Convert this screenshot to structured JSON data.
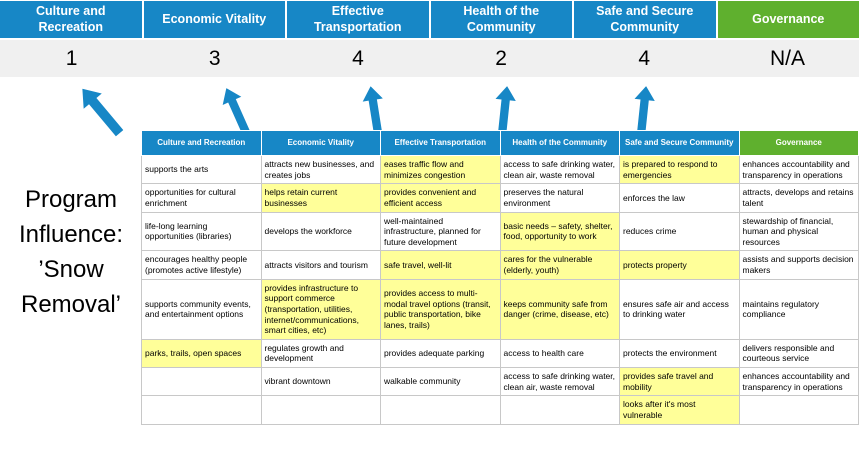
{
  "colors": {
    "blue": "#1787C6",
    "green": "#5FB02E",
    "band": "#F0F0F0",
    "highlight": "#FFFF99",
    "border": "#C8C8C8"
  },
  "summary": {
    "columns": [
      {
        "label": "Culture and Recreation",
        "score": "1",
        "color": "blue"
      },
      {
        "label": "Economic Vitality",
        "score": "3",
        "color": "blue"
      },
      {
        "label": "Effective Transportation",
        "score": "4",
        "color": "blue"
      },
      {
        "label": "Health of the Community",
        "score": "2",
        "color": "blue"
      },
      {
        "label": "Safe and Secure Community",
        "score": "4",
        "color": "blue"
      },
      {
        "label": "Governance",
        "score": "N/A",
        "color": "green"
      }
    ]
  },
  "program_label": {
    "lines": [
      "Program",
      "Influence:",
      "’Snow",
      "Removal’"
    ]
  },
  "matrix": {
    "columns": [
      {
        "header": "Culture and Recreation",
        "color": "blue",
        "cells": [
          {
            "text": "supports the arts",
            "highlight": false
          },
          {
            "text": "opportunities for cultural enrichment",
            "highlight": false
          },
          {
            "text": "life-long learning opportunities (libraries)",
            "highlight": false
          },
          {
            "text": "encourages healthy people (promotes active lifestyle)",
            "highlight": false
          },
          {
            "text": "supports community events, and entertainment options",
            "highlight": false
          },
          {
            "text": "parks, trails, open spaces",
            "highlight": true
          },
          {
            "text": "",
            "highlight": false
          },
          {
            "text": "",
            "highlight": false
          }
        ]
      },
      {
        "header": "Economic Vitality",
        "color": "blue",
        "cells": [
          {
            "text": "attracts new businesses, and creates jobs",
            "highlight": false
          },
          {
            "text": "helps retain current businesses",
            "highlight": true
          },
          {
            "text": "develops the workforce",
            "highlight": false
          },
          {
            "text": "attracts visitors and tourism",
            "highlight": false
          },
          {
            "text": "provides infrastructure to support commerce (transportation, utilities, internet/communications, smart cities, etc)",
            "highlight": true
          },
          {
            "text": "regulates growth and development",
            "highlight": false
          },
          {
            "text": "vibrant downtown",
            "highlight": false
          },
          {
            "text": "",
            "highlight": false
          }
        ]
      },
      {
        "header": "Effective Transportation",
        "color": "blue",
        "cells": [
          {
            "text": "eases traffic flow and minimizes congestion",
            "highlight": true
          },
          {
            "text": "provides convenient and efficient access",
            "highlight": true
          },
          {
            "text": "well-maintained infrastructure, planned for future development",
            "highlight": false
          },
          {
            "text": "safe travel, well-lit",
            "highlight": true
          },
          {
            "text": "provides access to multi-modal travel options (transit, public transportation, bike lanes, trails)",
            "highlight": true
          },
          {
            "text": "provides adequate parking",
            "highlight": false
          },
          {
            "text": "walkable community",
            "highlight": false
          },
          {
            "text": "",
            "highlight": false
          }
        ]
      },
      {
        "header": "Health of the Community",
        "color": "blue",
        "cells": [
          {
            "text": "access to safe drinking water, clean air, waste removal",
            "highlight": false
          },
          {
            "text": "preserves the natural environment",
            "highlight": false
          },
          {
            "text": "basic needs – safety, shelter, food, opportunity to work",
            "highlight": true
          },
          {
            "text": "cares for the vulnerable (elderly, youth)",
            "highlight": true
          },
          {
            "text": "keeps community safe from danger (crime, disease, etc)",
            "highlight": true
          },
          {
            "text": "access to health care",
            "highlight": false
          },
          {
            "text": "access to safe drinking water, clean air, waste removal",
            "highlight": false
          },
          {
            "text": "",
            "highlight": false
          }
        ]
      },
      {
        "header": "Safe and Secure Community",
        "color": "blue",
        "cells": [
          {
            "text": "is prepared to respond to emergencies",
            "highlight": true
          },
          {
            "text": "enforces the law",
            "highlight": false
          },
          {
            "text": "reduces crime",
            "highlight": false
          },
          {
            "text": "protects property",
            "highlight": true
          },
          {
            "text": "ensures safe air and access to drinking water",
            "highlight": false
          },
          {
            "text": "protects the environment",
            "highlight": false
          },
          {
            "text": "provides safe travel and mobility",
            "highlight": true
          },
          {
            "text": "looks after it's most vulnerable",
            "highlight": true
          }
        ]
      },
      {
        "header": "Governance",
        "color": "green",
        "cells": [
          {
            "text": "enhances accountability and transparency in operations",
            "highlight": false
          },
          {
            "text": "attracts, develops and retains talent",
            "highlight": false
          },
          {
            "text": "stewardship of financial, human and physical resources",
            "highlight": false
          },
          {
            "text": "assists and supports decision makers",
            "highlight": false
          },
          {
            "text": "maintains regulatory compliance",
            "highlight": false
          },
          {
            "text": "delivers responsible and courteous service",
            "highlight": false
          },
          {
            "text": "enhances accountability and transparency in operations",
            "highlight": false
          },
          {
            "text": "",
            "highlight": false
          }
        ]
      }
    ]
  }
}
